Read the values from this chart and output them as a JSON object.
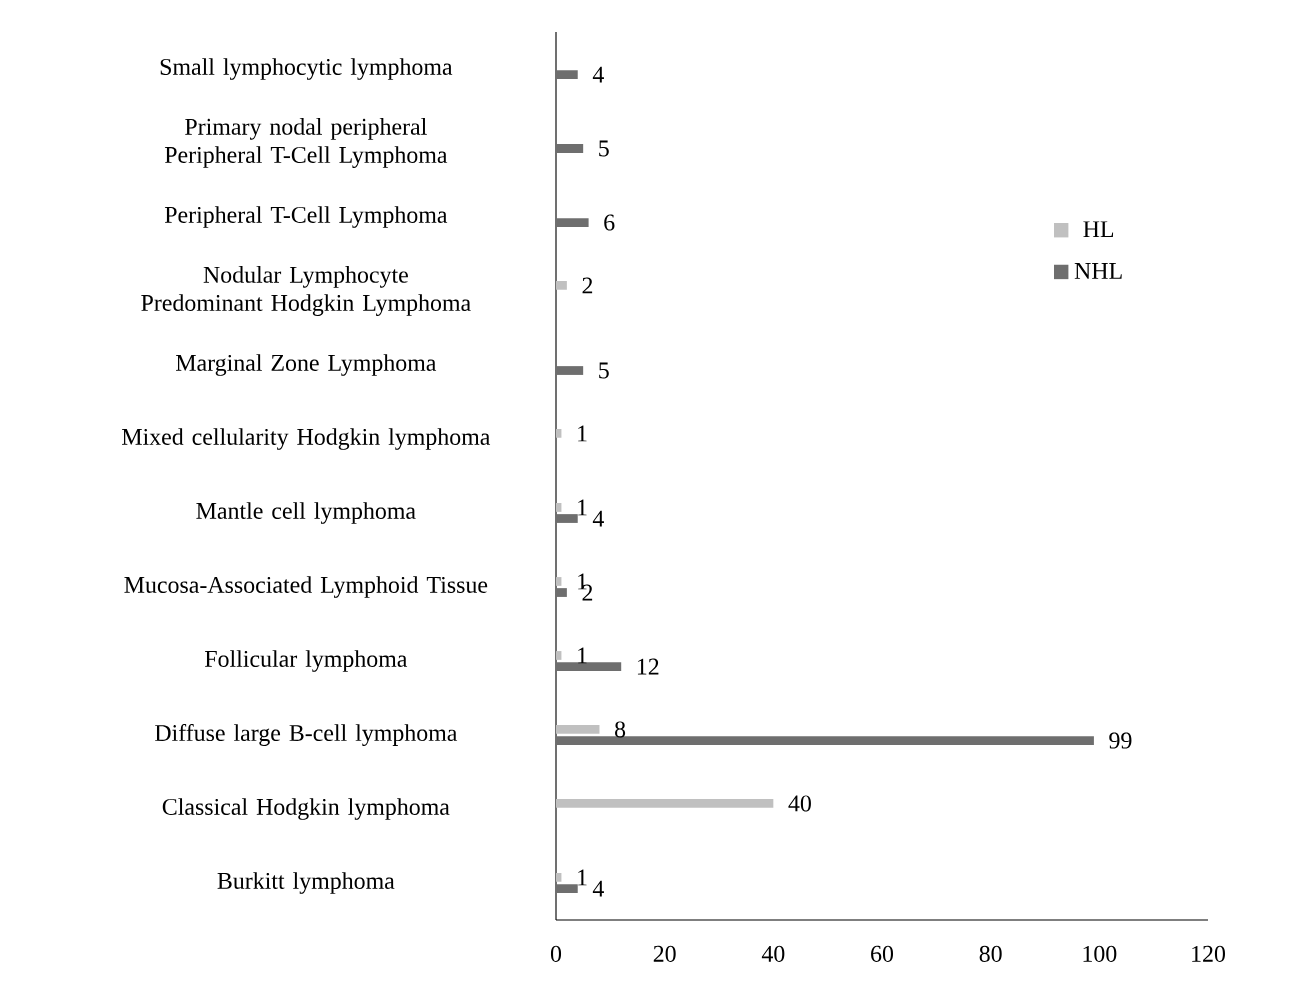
{
  "chart_data": {
    "type": "bar",
    "orientation": "horizontal",
    "categories": [
      "Small lymphocytic lymphoma",
      "Primary nodal peripheral Peripheral T-Cell Lymphoma",
      "Peripheral T-Cell Lymphoma",
      "Nodular Lymphocyte Predominant Hodgkin Lymphoma",
      "Marginal Zone Lymphoma",
      "Mixed cellularity Hodgkin lymphoma",
      "Mantle cell lymphoma",
      "Mucosa-Associated Lymphoid Tissue",
      "Follicular lymphoma",
      "Diffuse large B-cell lymphoma",
      "Classical Hodgkin lymphoma",
      "Burkitt lymphoma"
    ],
    "series": [
      {
        "name": "HL",
        "color": "#c0c0c0",
        "values": [
          null,
          null,
          null,
          2,
          null,
          1,
          1,
          1,
          1,
          8,
          40,
          1
        ]
      },
      {
        "name": "NHL",
        "color": "#6e6e6e",
        "values": [
          4,
          5,
          6,
          null,
          5,
          null,
          4,
          2,
          12,
          99,
          null,
          4
        ]
      }
    ],
    "xlim": [
      0,
      120
    ],
    "xticks": [
      0,
      20,
      40,
      60,
      80,
      100,
      120
    ],
    "data_labels": true,
    "legend": "right",
    "grid": false
  }
}
